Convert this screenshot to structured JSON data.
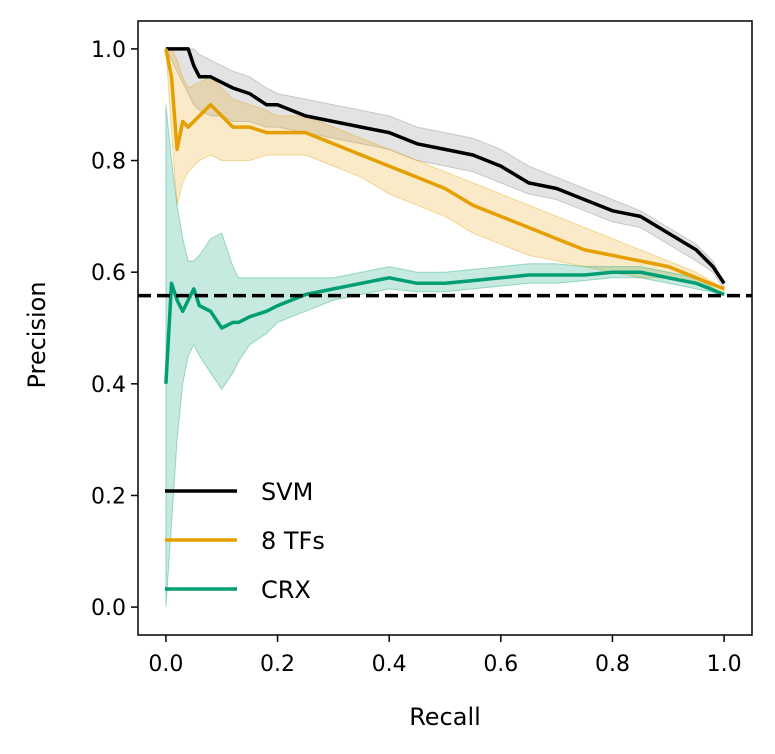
{
  "chart_data": {
    "type": "line",
    "xlabel": "Recall",
    "ylabel": "Precision",
    "xlim": [
      -0.05,
      1.05
    ],
    "ylim": [
      -0.05,
      1.05
    ],
    "xticks": [
      0.0,
      0.2,
      0.4,
      0.6,
      0.8,
      1.0
    ],
    "yticks": [
      0.0,
      0.2,
      0.4,
      0.6,
      0.8,
      1.0
    ],
    "xtick_labels": [
      "0.0",
      "0.2",
      "0.4",
      "0.6",
      "0.8",
      "1.0"
    ],
    "ytick_labels": [
      "0.0",
      "0.2",
      "0.4",
      "0.6",
      "0.8",
      "1.0"
    ],
    "grid": false,
    "legend_position": "lower-left",
    "baseline": {
      "y": 0.558,
      "style": "dashed",
      "color": "#000000"
    },
    "series": [
      {
        "name": "SVM",
        "color": "#000000",
        "band_color": "#808080",
        "x": [
          0.0,
          0.04,
          0.05,
          0.06,
          0.08,
          0.1,
          0.12,
          0.15,
          0.18,
          0.2,
          0.25,
          0.3,
          0.35,
          0.4,
          0.45,
          0.5,
          0.55,
          0.6,
          0.65,
          0.7,
          0.75,
          0.8,
          0.85,
          0.9,
          0.95,
          0.98,
          1.0
        ],
        "y": [
          1.0,
          1.0,
          0.97,
          0.95,
          0.95,
          0.94,
          0.93,
          0.92,
          0.9,
          0.9,
          0.88,
          0.87,
          0.86,
          0.85,
          0.83,
          0.82,
          0.81,
          0.79,
          0.76,
          0.75,
          0.73,
          0.71,
          0.7,
          0.67,
          0.64,
          0.61,
          0.58
        ],
        "upper": [
          1.0,
          1.0,
          1.0,
          0.99,
          0.98,
          0.97,
          0.96,
          0.95,
          0.93,
          0.92,
          0.91,
          0.9,
          0.89,
          0.88,
          0.86,
          0.85,
          0.84,
          0.82,
          0.79,
          0.77,
          0.75,
          0.73,
          0.71,
          0.68,
          0.65,
          0.62,
          0.58
        ],
        "lower": [
          1.0,
          0.92,
          0.9,
          0.89,
          0.88,
          0.88,
          0.87,
          0.87,
          0.86,
          0.86,
          0.85,
          0.84,
          0.83,
          0.82,
          0.8,
          0.79,
          0.78,
          0.76,
          0.74,
          0.73,
          0.71,
          0.69,
          0.68,
          0.65,
          0.62,
          0.6,
          0.57
        ]
      },
      {
        "name": "8 TFs",
        "color": "#E69F00",
        "band_color": "#E69F00",
        "x": [
          0.0,
          0.01,
          0.02,
          0.03,
          0.04,
          0.06,
          0.08,
          0.1,
          0.12,
          0.15,
          0.18,
          0.2,
          0.25,
          0.3,
          0.35,
          0.4,
          0.45,
          0.5,
          0.55,
          0.6,
          0.65,
          0.7,
          0.75,
          0.8,
          0.85,
          0.9,
          0.95,
          1.0
        ],
        "y": [
          1.0,
          0.95,
          0.82,
          0.87,
          0.86,
          0.88,
          0.9,
          0.88,
          0.86,
          0.86,
          0.85,
          0.85,
          0.85,
          0.83,
          0.81,
          0.79,
          0.77,
          0.75,
          0.72,
          0.7,
          0.68,
          0.66,
          0.64,
          0.63,
          0.62,
          0.61,
          0.59,
          0.57
        ],
        "upper": [
          1.0,
          1.0,
          0.98,
          0.95,
          0.93,
          0.94,
          0.95,
          0.93,
          0.91,
          0.9,
          0.89,
          0.88,
          0.88,
          0.86,
          0.84,
          0.82,
          0.8,
          0.78,
          0.76,
          0.74,
          0.72,
          0.7,
          0.68,
          0.66,
          0.64,
          0.62,
          0.6,
          0.57
        ],
        "lower": [
          1.0,
          0.85,
          0.72,
          0.76,
          0.78,
          0.8,
          0.81,
          0.8,
          0.8,
          0.8,
          0.81,
          0.81,
          0.81,
          0.79,
          0.77,
          0.74,
          0.72,
          0.7,
          0.67,
          0.65,
          0.63,
          0.62,
          0.61,
          0.6,
          0.59,
          0.59,
          0.58,
          0.56
        ]
      },
      {
        "name": "CRX",
        "color": "#009E73",
        "band_color": "#009E73",
        "x": [
          0.0,
          0.01,
          0.02,
          0.03,
          0.04,
          0.05,
          0.06,
          0.08,
          0.1,
          0.12,
          0.13,
          0.15,
          0.18,
          0.2,
          0.25,
          0.3,
          0.35,
          0.4,
          0.45,
          0.5,
          0.55,
          0.6,
          0.65,
          0.7,
          0.75,
          0.8,
          0.85,
          0.9,
          0.95,
          1.0
        ],
        "y": [
          0.4,
          0.58,
          0.55,
          0.53,
          0.55,
          0.57,
          0.54,
          0.53,
          0.5,
          0.51,
          0.51,
          0.52,
          0.53,
          0.54,
          0.56,
          0.57,
          0.58,
          0.59,
          0.58,
          0.58,
          0.585,
          0.59,
          0.595,
          0.595,
          0.595,
          0.6,
          0.6,
          0.59,
          0.58,
          0.56
        ],
        "upper": [
          0.9,
          0.8,
          0.72,
          0.66,
          0.62,
          0.62,
          0.63,
          0.66,
          0.67,
          0.61,
          0.59,
          0.59,
          0.59,
          0.59,
          0.59,
          0.59,
          0.6,
          0.61,
          0.6,
          0.6,
          0.605,
          0.61,
          0.615,
          0.615,
          0.61,
          0.61,
          0.61,
          0.6,
          0.59,
          0.56
        ],
        "lower": [
          0.0,
          0.15,
          0.3,
          0.4,
          0.45,
          0.47,
          0.45,
          0.42,
          0.39,
          0.42,
          0.44,
          0.47,
          0.49,
          0.51,
          0.53,
          0.55,
          0.56,
          0.57,
          0.565,
          0.565,
          0.57,
          0.575,
          0.58,
          0.58,
          0.585,
          0.59,
          0.59,
          0.58,
          0.57,
          0.56
        ]
      }
    ]
  }
}
